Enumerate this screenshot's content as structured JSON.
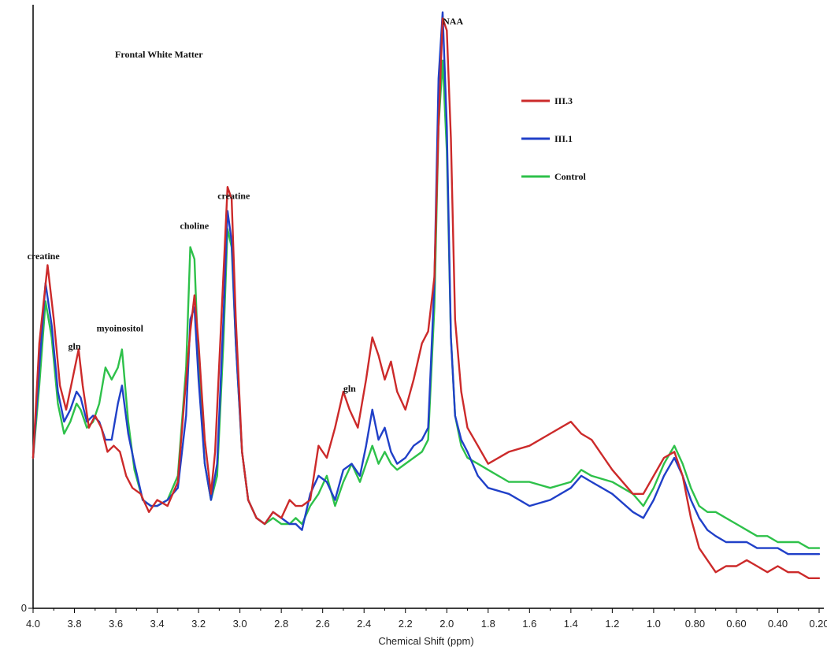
{
  "chart_data": {
    "type": "line",
    "title": "Frontal White Matter",
    "xlabel": "Chemical Shift (ppm)",
    "ylabel": "",
    "xlim": [
      4.0,
      0.2
    ],
    "x_reversed": true,
    "ylim": [
      0,
      100
    ],
    "y_tick_labels": [
      "0"
    ],
    "x_ticks": [
      "4.0",
      "3.8",
      "3.6",
      "3.4",
      "3.2",
      "3.0",
      "2.8",
      "2.6",
      "2.4",
      "2.2",
      "2.0",
      "1.8",
      "1.6",
      "1.4",
      "1.2",
      "1.0",
      "0.80",
      "0.60",
      "0.40",
      "0.20"
    ],
    "legend_position": "top-right",
    "annotations": [
      {
        "text": "creatine",
        "x": 3.95,
        "y": 58
      },
      {
        "text": "gln",
        "x": 3.8,
        "y": 43
      },
      {
        "text": "myoinositol",
        "x": 3.58,
        "y": 46
      },
      {
        "text": "choline",
        "x": 3.22,
        "y": 63
      },
      {
        "text": "creatine",
        "x": 3.03,
        "y": 68
      },
      {
        "text": "gln",
        "x": 2.47,
        "y": 36
      },
      {
        "text": "NAA",
        "x": 1.97,
        "y": 97
      }
    ],
    "series": [
      {
        "name": "III.3",
        "color": "#cc2a2a",
        "x": [
          4.0,
          3.97,
          3.93,
          3.9,
          3.87,
          3.84,
          3.81,
          3.78,
          3.76,
          3.73,
          3.7,
          3.67,
          3.64,
          3.61,
          3.58,
          3.55,
          3.52,
          3.48,
          3.44,
          3.4,
          3.35,
          3.3,
          3.27,
          3.24,
          3.22,
          3.2,
          3.17,
          3.14,
          3.12,
          3.09,
          3.06,
          3.04,
          3.02,
          2.99,
          2.96,
          2.92,
          2.88,
          2.84,
          2.8,
          2.76,
          2.73,
          2.7,
          2.66,
          2.62,
          2.58,
          2.54,
          2.5,
          2.47,
          2.43,
          2.39,
          2.36,
          2.33,
          2.3,
          2.27,
          2.24,
          2.2,
          2.16,
          2.12,
          2.09,
          2.06,
          2.04,
          2.02,
          2.0,
          1.98,
          1.96,
          1.93,
          1.9,
          1.85,
          1.8,
          1.7,
          1.6,
          1.5,
          1.4,
          1.35,
          1.3,
          1.2,
          1.1,
          1.05,
          1.0,
          0.95,
          0.9,
          0.86,
          0.82,
          0.78,
          0.74,
          0.7,
          0.65,
          0.6,
          0.55,
          0.5,
          0.45,
          0.4,
          0.35,
          0.3,
          0.25,
          0.2
        ],
        "values": [
          25,
          44,
          57,
          48,
          37,
          33,
          38,
          43,
          37,
          30,
          32,
          30,
          26,
          27,
          26,
          22,
          20,
          19,
          16,
          18,
          17,
          21,
          34,
          46,
          52,
          44,
          28,
          19,
          26,
          48,
          70,
          68,
          48,
          26,
          18,
          15,
          14,
          16,
          15,
          18,
          17,
          17,
          18,
          27,
          25,
          30,
          36,
          33,
          30,
          38,
          45,
          42,
          38,
          41,
          36,
          33,
          38,
          44,
          46,
          55,
          80,
          98,
          96,
          78,
          48,
          36,
          30,
          27,
          24,
          26,
          27,
          29,
          31,
          29,
          28,
          23,
          19,
          19,
          22,
          25,
          26,
          22,
          15,
          10,
          8,
          6,
          7,
          7,
          8,
          7,
          6,
          7,
          6,
          6,
          5,
          5
        ]
      },
      {
        "name": "III.1",
        "color": "#2040c8",
        "x": [
          4.0,
          3.97,
          3.94,
          3.91,
          3.88,
          3.85,
          3.82,
          3.79,
          3.77,
          3.74,
          3.71,
          3.68,
          3.65,
          3.62,
          3.59,
          3.57,
          3.54,
          3.51,
          3.47,
          3.43,
          3.4,
          3.35,
          3.3,
          3.26,
          3.24,
          3.22,
          3.2,
          3.17,
          3.14,
          3.11,
          3.08,
          3.06,
          3.04,
          3.02,
          2.99,
          2.96,
          2.92,
          2.88,
          2.84,
          2.8,
          2.76,
          2.73,
          2.7,
          2.66,
          2.62,
          2.58,
          2.54,
          2.5,
          2.46,
          2.42,
          2.39,
          2.36,
          2.33,
          2.3,
          2.27,
          2.24,
          2.2,
          2.16,
          2.12,
          2.09,
          2.06,
          2.04,
          2.02,
          2.0,
          1.98,
          1.96,
          1.93,
          1.9,
          1.85,
          1.8,
          1.7,
          1.6,
          1.5,
          1.4,
          1.35,
          1.3,
          1.2,
          1.1,
          1.05,
          1.0,
          0.95,
          0.9,
          0.86,
          0.82,
          0.78,
          0.74,
          0.7,
          0.65,
          0.6,
          0.55,
          0.5,
          0.45,
          0.4,
          0.35,
          0.3,
          0.25,
          0.2
        ],
        "values": [
          25,
          40,
          54,
          47,
          36,
          31,
          33,
          36,
          35,
          31,
          32,
          31,
          28,
          28,
          34,
          37,
          29,
          24,
          18,
          17,
          17,
          18,
          20,
          32,
          48,
          50,
          38,
          24,
          18,
          24,
          48,
          66,
          61,
          44,
          26,
          18,
          15,
          14,
          16,
          15,
          14,
          14,
          13,
          19,
          22,
          21,
          18,
          23,
          24,
          22,
          27,
          33,
          28,
          30,
          26,
          24,
          25,
          27,
          28,
          30,
          54,
          88,
          99,
          80,
          45,
          32,
          28,
          26,
          22,
          20,
          19,
          17,
          18,
          20,
          22,
          21,
          19,
          16,
          15,
          18,
          22,
          25,
          22,
          18,
          15,
          13,
          12,
          11,
          11,
          11,
          10,
          10,
          10,
          9,
          9,
          9,
          9
        ]
      },
      {
        "name": "Control",
        "color": "#2ec14a",
        "x": [
          4.0,
          3.97,
          3.94,
          3.91,
          3.88,
          3.85,
          3.82,
          3.79,
          3.77,
          3.74,
          3.71,
          3.68,
          3.65,
          3.62,
          3.59,
          3.57,
          3.54,
          3.51,
          3.47,
          3.43,
          3.4,
          3.35,
          3.3,
          3.26,
          3.24,
          3.22,
          3.2,
          3.17,
          3.14,
          3.11,
          3.08,
          3.06,
          3.04,
          3.02,
          2.99,
          2.96,
          2.92,
          2.88,
          2.84,
          2.8,
          2.76,
          2.73,
          2.7,
          2.66,
          2.62,
          2.58,
          2.54,
          2.5,
          2.46,
          2.42,
          2.39,
          2.36,
          2.33,
          2.3,
          2.27,
          2.24,
          2.2,
          2.16,
          2.12,
          2.09,
          2.06,
          2.04,
          2.02,
          2.0,
          1.98,
          1.96,
          1.93,
          1.9,
          1.85,
          1.8,
          1.7,
          1.6,
          1.5,
          1.4,
          1.35,
          1.3,
          1.2,
          1.1,
          1.05,
          1.0,
          0.95,
          0.9,
          0.86,
          0.82,
          0.78,
          0.74,
          0.7,
          0.65,
          0.6,
          0.55,
          0.5,
          0.45,
          0.4,
          0.35,
          0.3,
          0.25,
          0.2
        ],
        "values": [
          25,
          37,
          51,
          45,
          34,
          29,
          31,
          34,
          33,
          30,
          31,
          34,
          40,
          38,
          40,
          43,
          31,
          23,
          18,
          17,
          17,
          18,
          22,
          40,
          60,
          58,
          40,
          24,
          18,
          22,
          44,
          63,
          60,
          44,
          26,
          18,
          15,
          14,
          15,
          14,
          14,
          15,
          14,
          17,
          19,
          22,
          17,
          21,
          24,
          21,
          24,
          27,
          24,
          26,
          24,
          23,
          24,
          25,
          26,
          28,
          50,
          80,
          91,
          76,
          45,
          32,
          27,
          25,
          24,
          23,
          21,
          21,
          20,
          21,
          23,
          22,
          21,
          19,
          17,
          20,
          24,
          27,
          24,
          20,
          17,
          16,
          16,
          15,
          14,
          13,
          12,
          12,
          11,
          11,
          11,
          10,
          10
        ]
      }
    ]
  }
}
